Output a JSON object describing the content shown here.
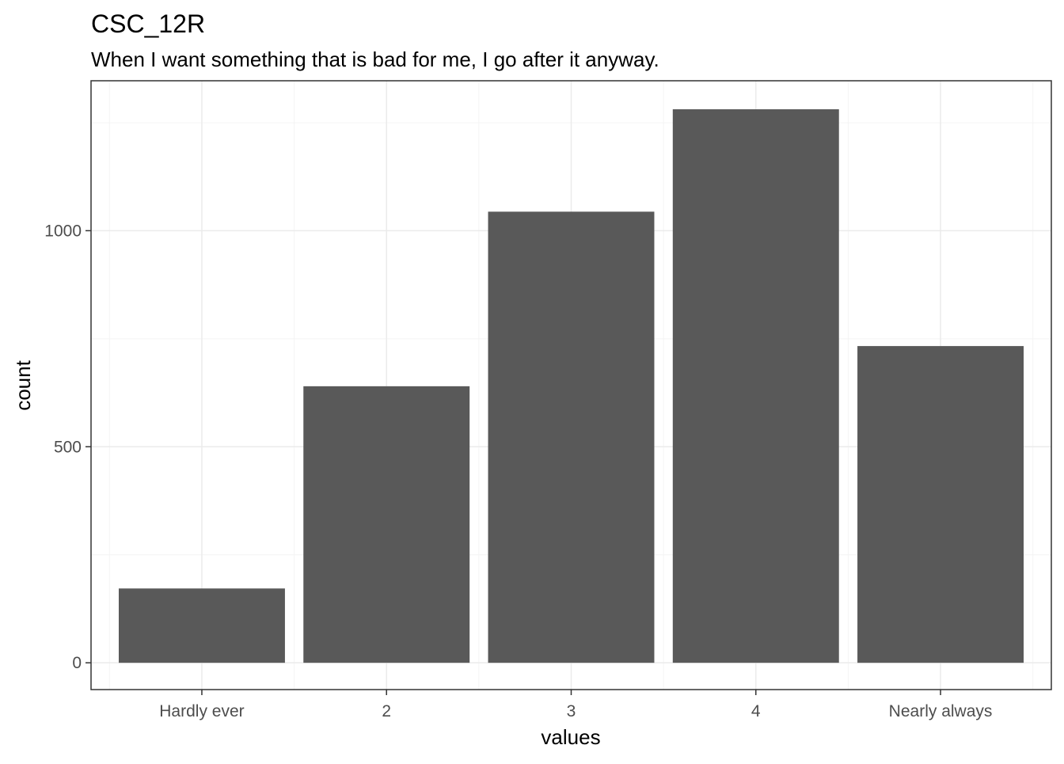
{
  "chart_data": {
    "type": "bar",
    "title": "CSC_12R",
    "subtitle": "When I want something that is bad for me, I go after it anyway.",
    "xlabel": "values",
    "ylabel": "count",
    "categories": [
      "Hardly ever",
      "2",
      "3",
      "4",
      "Nearly always"
    ],
    "values": [
      172,
      640,
      1044,
      1281,
      733
    ],
    "ylim": [
      -62,
      1347
    ],
    "yticks": [
      0,
      500,
      1000
    ],
    "ytick_labels": [
      "0",
      "500",
      "1000"
    ],
    "minor_yticks": [
      250,
      750,
      1250
    ],
    "grid": true,
    "legend": "none",
    "colors": {
      "bar": "#595959",
      "panel_border": "#333333",
      "grid_major": "#ebebeb",
      "grid_minor": "#f4f4f4",
      "tick_label": "#4d4d4d"
    }
  }
}
